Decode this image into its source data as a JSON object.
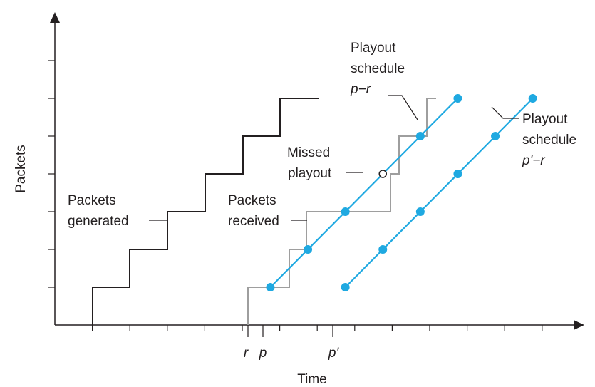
{
  "figure": {
    "axes": {
      "ylabel": "Packets",
      "xlabel": "Time"
    },
    "tick_labels": {
      "r": "r",
      "p": "p",
      "p_prime": "p'"
    },
    "labels": {
      "generated_line1": "Packets",
      "generated_line2": "generated",
      "received_line1": "Packets",
      "received_line2": "received",
      "missed_line1": "Missed",
      "missed_line2": "playout",
      "sched1_line1": "Playout",
      "sched1_line2": "schedule",
      "sched1_line3": "p−r",
      "sched2_line1": "Playout",
      "sched2_line2": "schedule",
      "sched2_line3": "p'−r"
    },
    "colors": {
      "generated": "#231f20",
      "received": "#9e9e9e",
      "schedule": "#1fa9e1",
      "axis": "#231f20"
    },
    "packets_generated_steps": [
      {
        "time": 1,
        "packet": 1
      },
      {
        "time": 2,
        "packet": 2
      },
      {
        "time": 3,
        "packet": 3
      },
      {
        "time": 4,
        "packet": 4
      },
      {
        "time": 5,
        "packet": 5
      },
      {
        "time": 6,
        "packet": 6
      }
    ],
    "playout_schedule_p_minus_r": [
      {
        "time": 5.75,
        "packet": 1,
        "missed": false
      },
      {
        "time": 6.75,
        "packet": 2,
        "missed": false
      },
      {
        "time": 7.75,
        "packet": 3,
        "missed": false
      },
      {
        "time": 8.75,
        "packet": 4,
        "missed": true
      },
      {
        "time": 9.75,
        "packet": 5,
        "missed": false
      },
      {
        "time": 10.75,
        "packet": 6,
        "missed": false
      }
    ],
    "playout_schedule_p_prime_minus_r": [
      {
        "time": 7.75,
        "packet": 1
      },
      {
        "time": 8.75,
        "packet": 2
      },
      {
        "time": 9.75,
        "packet": 3
      },
      {
        "time": 10.75,
        "packet": 4
      },
      {
        "time": 11.75,
        "packet": 5
      },
      {
        "time": 12.75,
        "packet": 6
      }
    ]
  }
}
